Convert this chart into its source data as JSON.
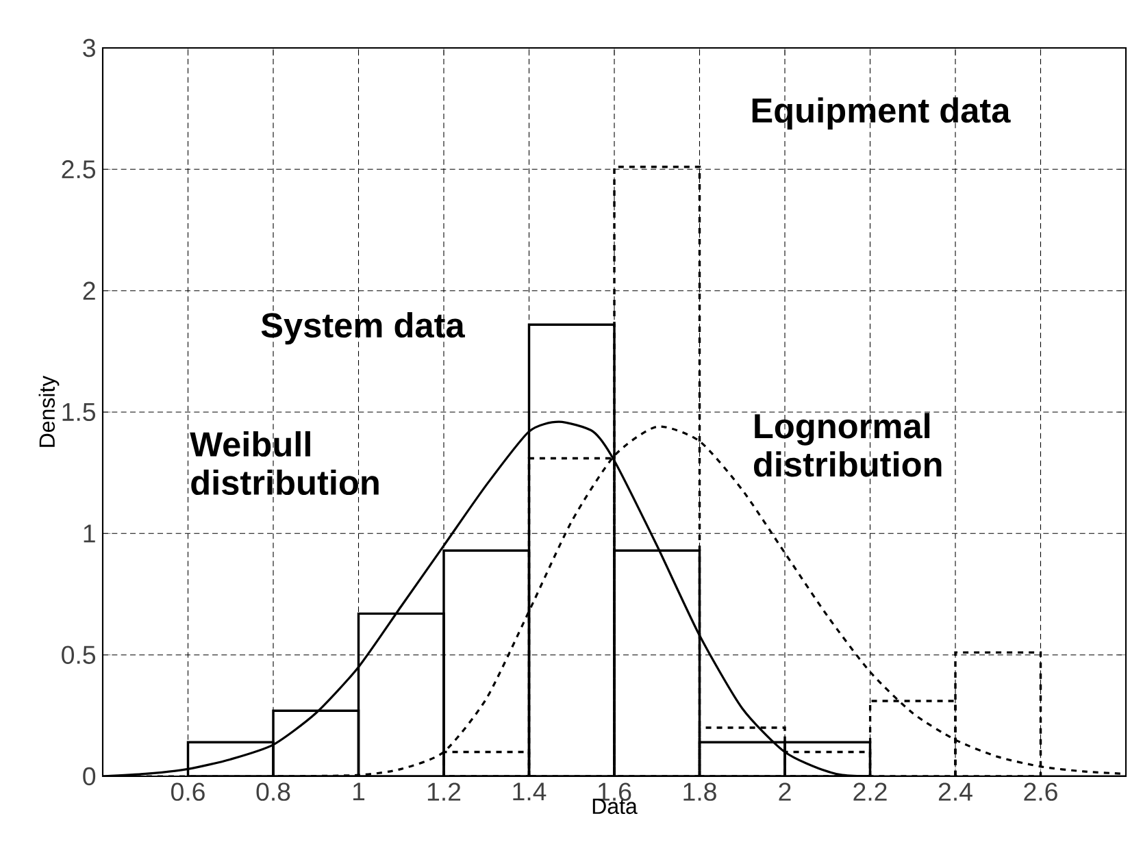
{
  "chart_data": {
    "type": "histogram",
    "xlabel": "Data",
    "ylabel": "Density",
    "xlim": [
      0.4,
      2.8
    ],
    "ylim": [
      0,
      3
    ],
    "xticks": [
      0.6,
      0.8,
      1,
      1.2,
      1.4,
      1.6,
      1.8,
      2,
      2.2,
      2.4,
      2.6
    ],
    "yticks": [
      0,
      0.5,
      1,
      1.5,
      2,
      2.5,
      3
    ],
    "grid": true,
    "series": [
      {
        "color": "#000000",
        "line_style": "solid",
        "bins": [
          0.6,
          0.8,
          1.0,
          1.2,
          1.4,
          1.6,
          1.8,
          2.0,
          2.2
        ],
        "values": [
          0.14,
          0.27,
          0.67,
          0.93,
          1.86,
          0.93,
          0.14,
          0.14
        ]
      },
      {
        "color": "#000000",
        "line_style": "dashed",
        "bins": [
          1.2,
          1.4,
          1.6,
          1.8,
          2.0,
          2.2,
          2.4,
          2.6
        ],
        "values": [
          0.1,
          1.31,
          2.51,
          0.2,
          0.1,
          0.31,
          0.51
        ]
      },
      {
        "type": "line",
        "color": "#000000",
        "line_style": "solid",
        "x": [
          0.4,
          0.5,
          0.6,
          0.7,
          0.8,
          0.9,
          1.0,
          1.1,
          1.2,
          1.3,
          1.4,
          1.47,
          1.55,
          1.6,
          1.7,
          1.8,
          1.9,
          2.0,
          2.1,
          2.2,
          2.8
        ],
        "values": [
          0,
          0.01,
          0.03,
          0.07,
          0.13,
          0.26,
          0.45,
          0.7,
          0.95,
          1.2,
          1.42,
          1.46,
          1.42,
          1.3,
          0.95,
          0.58,
          0.28,
          0.1,
          0.02,
          0,
          0
        ]
      },
      {
        "type": "line",
        "color": "#000000",
        "line_style": "dashed",
        "x": [
          0.4,
          0.8,
          1.0,
          1.1,
          1.2,
          1.3,
          1.4,
          1.5,
          1.6,
          1.7,
          1.8,
          1.9,
          2.0,
          2.1,
          2.2,
          2.3,
          2.4,
          2.5,
          2.6,
          2.7,
          2.8
        ],
        "values": [
          0,
          0,
          0.005,
          0.03,
          0.1,
          0.32,
          0.68,
          1.05,
          1.32,
          1.44,
          1.38,
          1.18,
          0.92,
          0.66,
          0.43,
          0.26,
          0.15,
          0.08,
          0.04,
          0.02,
          0.01
        ]
      }
    ],
    "annotations": [
      "System data",
      "Weibull distribution",
      "Equipment data",
      "Lognormal distribution"
    ]
  }
}
